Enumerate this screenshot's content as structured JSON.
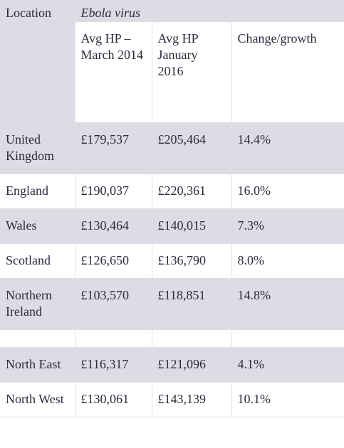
{
  "header": {
    "location": "Location",
    "subtitle": "Ebola virus"
  },
  "columns": [
    "Avg HP – March 2014",
    "Avg HP January 2016",
    "Change/growth"
  ],
  "groups": [
    [
      [
        "United Kingdom",
        "£179,537",
        "£205,464",
        "14.4%"
      ],
      [
        "England",
        "£190,037",
        "£220,361",
        "16.0%"
      ],
      [
        "Wales",
        "£130,464",
        "£140,015",
        "7.3%"
      ],
      [
        "Scotland",
        "£126,650",
        "£136,790",
        "8.0%"
      ],
      [
        "Northern Ireland",
        "£103,570",
        "£118,851",
        "14.8%"
      ]
    ],
    [
      [
        "North East",
        "£116,317",
        "£121,096",
        "4.1%"
      ],
      [
        "North West",
        "£130,061",
        "£143,139",
        "10.1%"
      ]
    ]
  ]
}
